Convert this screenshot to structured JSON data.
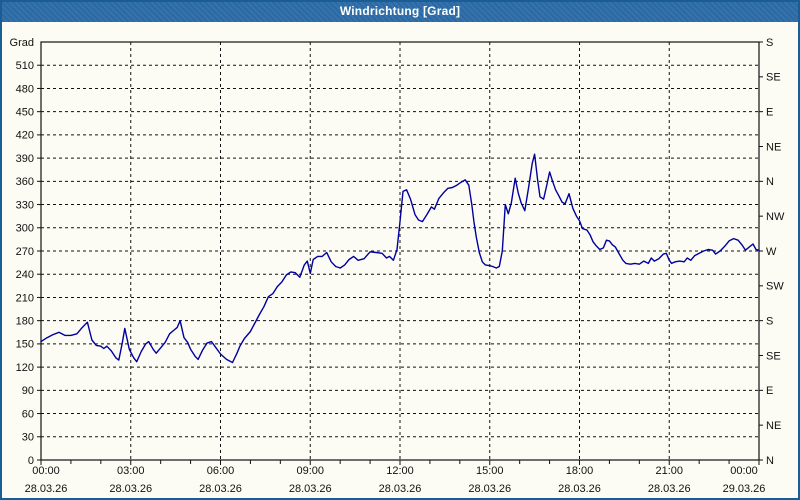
{
  "window": {
    "title": "Windrichtung [Grad]"
  },
  "colors": {
    "titlebar": "#2b6ca8",
    "window_border": "#1a5c94",
    "background": "#fcfcf4",
    "grid": "#111111",
    "axis_text": "#111111",
    "line": "#0000a0"
  },
  "chart_data": {
    "type": "line",
    "title": "Windrichtung [Grad]",
    "ylabel_left_unit": "Grad",
    "ylim": [
      0,
      540
    ],
    "xlim_hours": [
      0,
      24
    ],
    "grid": "dashed",
    "legend_position": "none",
    "y_ticks_left": [
      0,
      30,
      60,
      90,
      120,
      150,
      180,
      210,
      240,
      270,
      300,
      330,
      360,
      390,
      420,
      450,
      480,
      510
    ],
    "y_ticks_right": [
      {
        "value": 0,
        "label": "N"
      },
      {
        "value": 45,
        "label": "NE"
      },
      {
        "value": 90,
        "label": "E"
      },
      {
        "value": 135,
        "label": "SE"
      },
      {
        "value": 180,
        "label": "S"
      },
      {
        "value": 225,
        "label": "SW"
      },
      {
        "value": 270,
        "label": "W"
      },
      {
        "value": 315,
        "label": "NW"
      },
      {
        "value": 360,
        "label": "N"
      },
      {
        "value": 405,
        "label": "NE"
      },
      {
        "value": 450,
        "label": "E"
      },
      {
        "value": 495,
        "label": "SE"
      },
      {
        "value": 540,
        "label": "S"
      }
    ],
    "x_ticks": [
      {
        "hour": 0,
        "time": "00:00",
        "date": "28.03.26"
      },
      {
        "hour": 3,
        "time": "03:00",
        "date": "28.03.26"
      },
      {
        "hour": 6,
        "time": "06:00",
        "date": "28.03.26"
      },
      {
        "hour": 9,
        "time": "09:00",
        "date": "28.03.26"
      },
      {
        "hour": 12,
        "time": "12:00",
        "date": "28.03.26"
      },
      {
        "hour": 15,
        "time": "15:00",
        "date": "28.03.26"
      },
      {
        "hour": 18,
        "time": "18:00",
        "date": "28.03.26"
      },
      {
        "hour": 21,
        "time": "21:00",
        "date": "28.03.26"
      },
      {
        "hour": 24,
        "time": "00:00",
        "date": "29.03.26"
      }
    ],
    "x_minor_tick_every_hours": 1,
    "series": [
      {
        "name": "Windrichtung",
        "color": "#0000a0",
        "points": [
          [
            0,
            153
          ],
          [
            0.2,
            158
          ],
          [
            0.4,
            162
          ],
          [
            0.6,
            165
          ],
          [
            0.8,
            161
          ],
          [
            1.0,
            161
          ],
          [
            1.2,
            163
          ],
          [
            1.35,
            170
          ],
          [
            1.55,
            178
          ],
          [
            1.7,
            155
          ],
          [
            1.85,
            148
          ],
          [
            2.0,
            147
          ],
          [
            2.1,
            144
          ],
          [
            2.2,
            147
          ],
          [
            2.35,
            141
          ],
          [
            2.5,
            132
          ],
          [
            2.6,
            129
          ],
          [
            2.72,
            152
          ],
          [
            2.8,
            170
          ],
          [
            2.95,
            143
          ],
          [
            3.1,
            132
          ],
          [
            3.2,
            127
          ],
          [
            3.35,
            140
          ],
          [
            3.5,
            150
          ],
          [
            3.6,
            153
          ],
          [
            3.75,
            143
          ],
          [
            3.85,
            138
          ],
          [
            4.0,
            145
          ],
          [
            4.15,
            152
          ],
          [
            4.3,
            163
          ],
          [
            4.45,
            168
          ],
          [
            4.55,
            171
          ],
          [
            4.65,
            180
          ],
          [
            4.78,
            158
          ],
          [
            4.9,
            152
          ],
          [
            5.0,
            143
          ],
          [
            5.15,
            134
          ],
          [
            5.25,
            130
          ],
          [
            5.4,
            142
          ],
          [
            5.55,
            151
          ],
          [
            5.7,
            153
          ],
          [
            5.85,
            145
          ],
          [
            6.0,
            137
          ],
          [
            6.2,
            130
          ],
          [
            6.4,
            126
          ],
          [
            6.55,
            138
          ],
          [
            6.65,
            147
          ],
          [
            6.8,
            157
          ],
          [
            7.0,
            166
          ],
          [
            7.15,
            177
          ],
          [
            7.3,
            188
          ],
          [
            7.45,
            198
          ],
          [
            7.6,
            211
          ],
          [
            7.75,
            215
          ],
          [
            7.9,
            224
          ],
          [
            8.05,
            230
          ],
          [
            8.2,
            239
          ],
          [
            8.35,
            243
          ],
          [
            8.5,
            242
          ],
          [
            8.65,
            236
          ],
          [
            8.8,
            252
          ],
          [
            8.9,
            257
          ],
          [
            9.0,
            241
          ],
          [
            9.1,
            259
          ],
          [
            9.25,
            263
          ],
          [
            9.4,
            263
          ],
          [
            9.55,
            268
          ],
          [
            9.7,
            256
          ],
          [
            9.85,
            250
          ],
          [
            10.0,
            248
          ],
          [
            10.15,
            252
          ],
          [
            10.3,
            259
          ],
          [
            10.45,
            263
          ],
          [
            10.6,
            258
          ],
          [
            10.8,
            260
          ],
          [
            11.0,
            269
          ],
          [
            11.2,
            268
          ],
          [
            11.4,
            267
          ],
          [
            11.55,
            261
          ],
          [
            11.65,
            263
          ],
          [
            11.78,
            258
          ],
          [
            11.9,
            272
          ],
          [
            12.0,
            308
          ],
          [
            12.1,
            347
          ],
          [
            12.22,
            349
          ],
          [
            12.35,
            337
          ],
          [
            12.5,
            317
          ],
          [
            12.62,
            310
          ],
          [
            12.75,
            308
          ],
          [
            12.9,
            317
          ],
          [
            13.05,
            327
          ],
          [
            13.15,
            324
          ],
          [
            13.3,
            338
          ],
          [
            13.45,
            345
          ],
          [
            13.6,
            351
          ],
          [
            13.75,
            352
          ],
          [
            13.9,
            355
          ],
          [
            14.05,
            359
          ],
          [
            14.18,
            362
          ],
          [
            14.3,
            355
          ],
          [
            14.4,
            330
          ],
          [
            14.47,
            308
          ],
          [
            14.55,
            288
          ],
          [
            14.65,
            268
          ],
          [
            14.75,
            256
          ],
          [
            14.85,
            252
          ],
          [
            15.0,
            251
          ],
          [
            15.1,
            250
          ],
          [
            15.22,
            248
          ],
          [
            15.32,
            250
          ],
          [
            15.42,
            270
          ],
          [
            15.52,
            330
          ],
          [
            15.62,
            318
          ],
          [
            15.72,
            332
          ],
          [
            15.85,
            364
          ],
          [
            15.95,
            345
          ],
          [
            16.05,
            332
          ],
          [
            16.17,
            322
          ],
          [
            16.3,
            352
          ],
          [
            16.42,
            383
          ],
          [
            16.5,
            395
          ],
          [
            16.6,
            362
          ],
          [
            16.68,
            340
          ],
          [
            16.8,
            337
          ],
          [
            16.9,
            354
          ],
          [
            17.0,
            372
          ],
          [
            17.1,
            360
          ],
          [
            17.2,
            349
          ],
          [
            17.3,
            342
          ],
          [
            17.42,
            333
          ],
          [
            17.52,
            331
          ],
          [
            17.65,
            344
          ],
          [
            17.78,
            325
          ],
          [
            17.9,
            315
          ],
          [
            18.0,
            309
          ],
          [
            18.1,
            299
          ],
          [
            18.25,
            297
          ],
          [
            18.35,
            291
          ],
          [
            18.45,
            282
          ],
          [
            18.55,
            277
          ],
          [
            18.68,
            272
          ],
          [
            18.8,
            274
          ],
          [
            18.9,
            284
          ],
          [
            19.0,
            283
          ],
          [
            19.1,
            278
          ],
          [
            19.2,
            275
          ],
          [
            19.3,
            268
          ],
          [
            19.45,
            258
          ],
          [
            19.55,
            254
          ],
          [
            19.7,
            253
          ],
          [
            19.85,
            254
          ],
          [
            20.0,
            253
          ],
          [
            20.15,
            257
          ],
          [
            20.3,
            254
          ],
          [
            20.4,
            261
          ],
          [
            20.5,
            257
          ],
          [
            20.65,
            260
          ],
          [
            20.8,
            266
          ],
          [
            20.9,
            267
          ],
          [
            21.0,
            258
          ],
          [
            21.08,
            254
          ],
          [
            21.2,
            256
          ],
          [
            21.35,
            257
          ],
          [
            21.5,
            256
          ],
          [
            21.6,
            261
          ],
          [
            21.72,
            258
          ],
          [
            21.85,
            264
          ],
          [
            22.0,
            267
          ],
          [
            22.15,
            270
          ],
          [
            22.3,
            272
          ],
          [
            22.45,
            271
          ],
          [
            22.55,
            266
          ],
          [
            22.7,
            270
          ],
          [
            22.85,
            276
          ],
          [
            23.0,
            283
          ],
          [
            23.15,
            286
          ],
          [
            23.3,
            284
          ],
          [
            23.45,
            277
          ],
          [
            23.55,
            271
          ],
          [
            23.7,
            276
          ],
          [
            23.8,
            279
          ],
          [
            23.9,
            272
          ],
          [
            24.0,
            271
          ]
        ]
      }
    ]
  }
}
